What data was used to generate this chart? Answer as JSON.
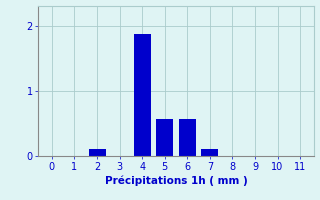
{
  "x_values": [
    0,
    1,
    2,
    3,
    4,
    5,
    6,
    7,
    8,
    9,
    10,
    11
  ],
  "bar_heights": [
    0,
    0,
    0.1,
    0,
    1.87,
    0.57,
    0.57,
    0.1,
    0,
    0,
    0,
    0
  ],
  "bar_color": "#0000cc",
  "background_color": "#dff4f4",
  "grid_color": "#aacccc",
  "xlabel": "Précipitations 1h ( mm )",
  "xlabel_color": "#0000cc",
  "tick_color": "#0000cc",
  "axis_color": "#888888",
  "ylim": [
    0,
    2.3
  ],
  "yticks": [
    0,
    1,
    2
  ],
  "xlim": [
    -0.6,
    11.6
  ],
  "xticks": [
    0,
    1,
    2,
    3,
    4,
    5,
    6,
    7,
    8,
    9,
    10,
    11
  ],
  "bar_width": 0.75,
  "tick_labelsize": 7,
  "xlabel_fontsize": 7.5
}
